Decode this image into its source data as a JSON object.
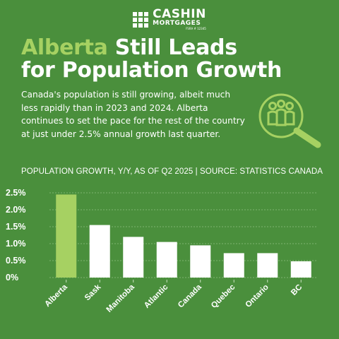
{
  "brand": {
    "name": "CASHIN",
    "sub": "MORTGAGES",
    "fine": "FSRA # 12345"
  },
  "headline": {
    "accent": "Alberta",
    "rest_line1": "Still Leads",
    "line2": "for Population Growth"
  },
  "intro": "Canada's population is still growing, albeit much less rapidly than in 2023 and 2024. Alberta continues to set the pace for the rest of the country at just under 2.5% annual growth last quarter.",
  "illustration_icon": "people-under-magnifying-glass-icon",
  "colors": {
    "background": "#4a8f3c",
    "accent": "#a6d162",
    "bar_default": "#ffffff"
  },
  "chart_data": {
    "type": "bar",
    "title": "POPULATION GROWTH, Y/Y, AS OF Q2 2025 | SOURCE: STATISTICS CANADA",
    "categories": [
      "Alberta",
      "Sask",
      "Manitoba",
      "Atlantic",
      "Canada",
      "Quebec",
      "Ontario",
      "BC"
    ],
    "values": [
      2.45,
      1.55,
      1.2,
      1.05,
      0.95,
      0.72,
      0.72,
      0.48
    ],
    "highlight": "Alberta",
    "yticks": [
      "0%",
      "0.5%",
      "1.0%",
      "1.5%",
      "2.0%",
      "2.5%"
    ],
    "ylim": [
      0,
      2.5
    ],
    "grid": true,
    "xlabel": "",
    "ylabel": ""
  }
}
